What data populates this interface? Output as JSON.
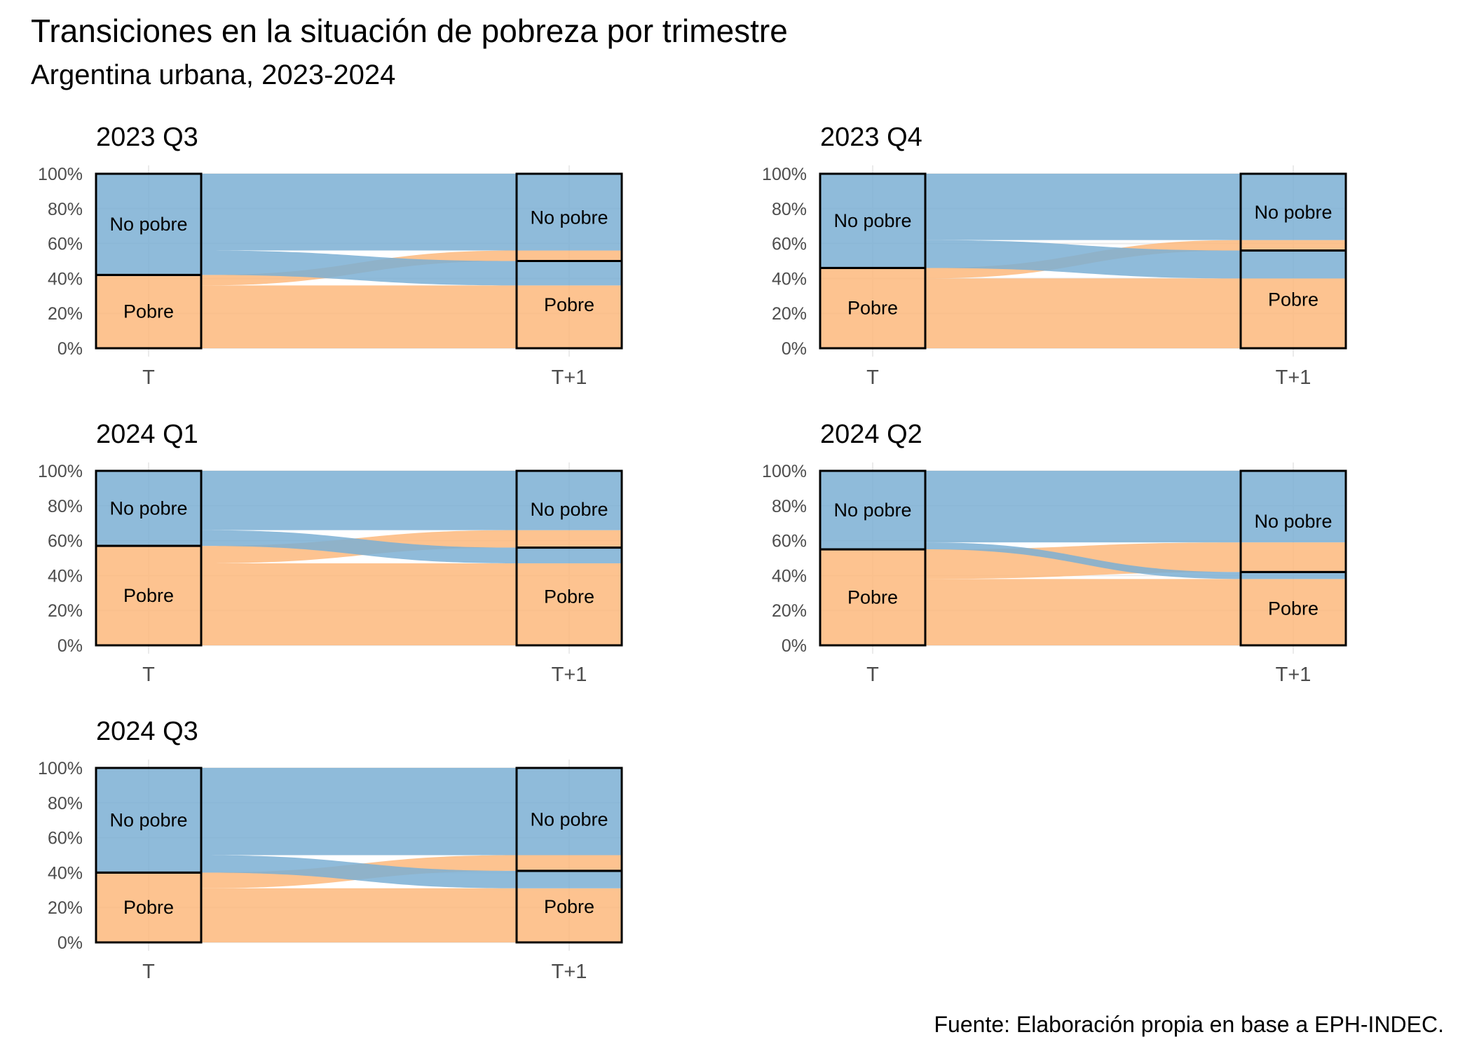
{
  "title": "Transiciones en la situación de pobreza por trimestre",
  "subtitle": "Argentina urbana, 2023-2024",
  "caption": "Fuente: Elaboración propia en base a EPH-INDEC.",
  "colors": {
    "no_pobre": "#7bafd4",
    "pobre": "#fdb97d",
    "frame": "#000000",
    "grid": "#ebebeb",
    "axis_text": "#4d4d4d"
  },
  "chart_data": [
    {
      "type": "alluvial",
      "panel": "2023 Q3",
      "x": [
        "T",
        "T+1"
      ],
      "y_ticks": [
        "0%",
        "20%",
        "40%",
        "60%",
        "80%",
        "100%"
      ],
      "ylim": [
        0,
        100
      ],
      "stratum_labels": {
        "no_pobre": "No pobre",
        "pobre": "Pobre"
      },
      "strata_T": {
        "pobre": 42,
        "no_pobre": 58
      },
      "strata_T1": {
        "pobre": 50,
        "no_pobre": 50
      },
      "flows": [
        {
          "from": "pobre",
          "to": "pobre",
          "value": 36
        },
        {
          "from": "pobre",
          "to": "no_pobre",
          "value": 6
        },
        {
          "from": "no_pobre",
          "to": "pobre",
          "value": 14
        },
        {
          "from": "no_pobre",
          "to": "no_pobre",
          "value": 44
        }
      ]
    },
    {
      "type": "alluvial",
      "panel": "2023 Q4",
      "x": [
        "T",
        "T+1"
      ],
      "y_ticks": [
        "0%",
        "20%",
        "40%",
        "60%",
        "80%",
        "100%"
      ],
      "ylim": [
        0,
        100
      ],
      "stratum_labels": {
        "no_pobre": "No pobre",
        "pobre": "Pobre"
      },
      "strata_T": {
        "pobre": 46,
        "no_pobre": 54
      },
      "strata_T1": {
        "pobre": 56,
        "no_pobre": 44
      },
      "flows": [
        {
          "from": "pobre",
          "to": "pobre",
          "value": 40
        },
        {
          "from": "pobre",
          "to": "no_pobre",
          "value": 6
        },
        {
          "from": "no_pobre",
          "to": "pobre",
          "value": 16
        },
        {
          "from": "no_pobre",
          "to": "no_pobre",
          "value": 38
        }
      ]
    },
    {
      "type": "alluvial",
      "panel": "2024 Q1",
      "x": [
        "T",
        "T+1"
      ],
      "y_ticks": [
        "0%",
        "20%",
        "40%",
        "60%",
        "80%",
        "100%"
      ],
      "ylim": [
        0,
        100
      ],
      "stratum_labels": {
        "no_pobre": "No pobre",
        "pobre": "Pobre"
      },
      "strata_T": {
        "pobre": 57,
        "no_pobre": 43
      },
      "strata_T1": {
        "pobre": 56,
        "no_pobre": 44
      },
      "flows": [
        {
          "from": "pobre",
          "to": "pobre",
          "value": 47
        },
        {
          "from": "pobre",
          "to": "no_pobre",
          "value": 10
        },
        {
          "from": "no_pobre",
          "to": "pobre",
          "value": 9
        },
        {
          "from": "no_pobre",
          "to": "no_pobre",
          "value": 34
        }
      ]
    },
    {
      "type": "alluvial",
      "panel": "2024 Q2",
      "x": [
        "T",
        "T+1"
      ],
      "y_ticks": [
        "0%",
        "20%",
        "40%",
        "60%",
        "80%",
        "100%"
      ],
      "ylim": [
        0,
        100
      ],
      "stratum_labels": {
        "no_pobre": "No pobre",
        "pobre": "Pobre"
      },
      "strata_T": {
        "pobre": 55,
        "no_pobre": 45
      },
      "strata_T1": {
        "pobre": 42,
        "no_pobre": 58
      },
      "flows": [
        {
          "from": "pobre",
          "to": "pobre",
          "value": 38
        },
        {
          "from": "pobre",
          "to": "no_pobre",
          "value": 17
        },
        {
          "from": "no_pobre",
          "to": "pobre",
          "value": 4
        },
        {
          "from": "no_pobre",
          "to": "no_pobre",
          "value": 41
        }
      ]
    },
    {
      "type": "alluvial",
      "panel": "2024 Q3",
      "x": [
        "T",
        "T+1"
      ],
      "y_ticks": [
        "0%",
        "20%",
        "40%",
        "60%",
        "80%",
        "100%"
      ],
      "ylim": [
        0,
        100
      ],
      "stratum_labels": {
        "no_pobre": "No pobre",
        "pobre": "Pobre"
      },
      "strata_T": {
        "pobre": 40,
        "no_pobre": 60
      },
      "strata_T1": {
        "pobre": 41,
        "no_pobre": 59
      },
      "flows": [
        {
          "from": "pobre",
          "to": "pobre",
          "value": 31
        },
        {
          "from": "pobre",
          "to": "no_pobre",
          "value": 9
        },
        {
          "from": "no_pobre",
          "to": "pobre",
          "value": 10
        },
        {
          "from": "no_pobre",
          "to": "no_pobre",
          "value": 50
        }
      ]
    }
  ]
}
